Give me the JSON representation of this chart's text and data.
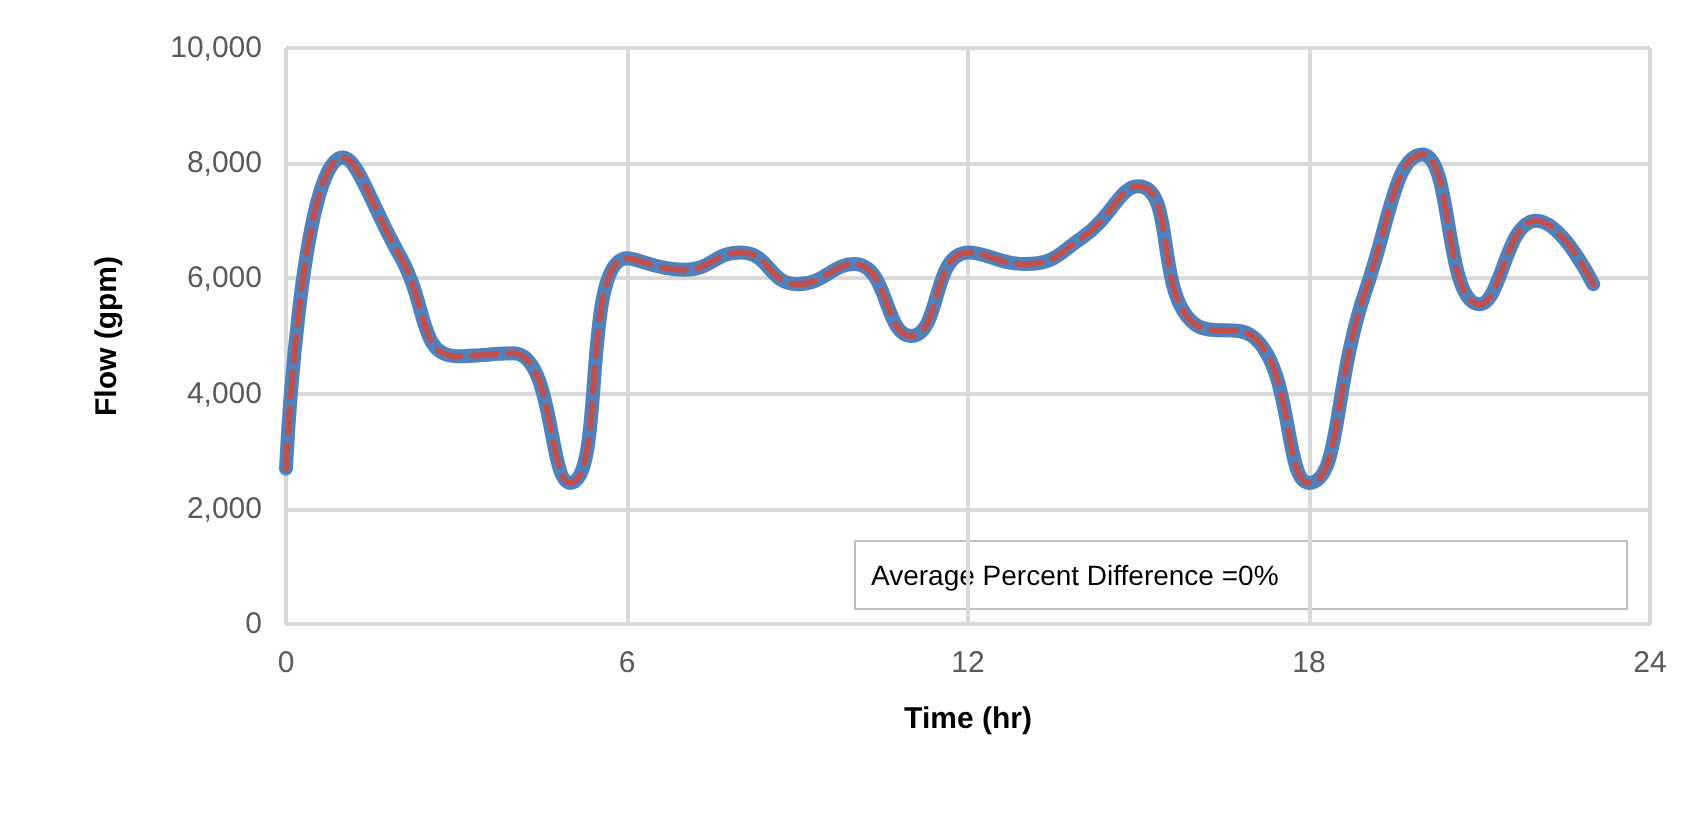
{
  "chart_data": {
    "type": "line",
    "xlabel": "Time (hr)",
    "ylabel": "Flow (gpm)",
    "x": [
      0,
      1,
      2,
      3,
      4,
      5,
      6,
      7,
      8,
      9,
      10,
      11,
      12,
      13,
      14,
      15,
      16,
      17,
      18,
      19,
      20,
      21,
      22,
      23
    ],
    "series": [
      {
        "color": "#4f81bd",
        "line_style": "solid",
        "values": [
          2700,
          8100,
          6400,
          4650,
          4700,
          2450,
          6350,
          6150,
          6450,
          5900,
          6250,
          5000,
          6450,
          6250,
          6700,
          7600,
          5200,
          5000,
          2450,
          5800,
          8150,
          5550,
          7000,
          5900
        ]
      },
      {
        "color": "#c0504d",
        "line_style": "dashed",
        "values": [
          2700,
          8100,
          6400,
          4650,
          4700,
          2450,
          6350,
          6150,
          6450,
          5900,
          6250,
          5000,
          6450,
          6250,
          6700,
          7600,
          5200,
          5000,
          2450,
          5800,
          8150,
          5550,
          7000,
          5900
        ]
      }
    ],
    "xlim": [
      0,
      24
    ],
    "xticks": [
      0,
      6,
      12,
      18,
      24
    ],
    "ylim": [
      0,
      10000
    ],
    "yticks": [
      0,
      {
        "value": 2000,
        "label": "2,000"
      },
      {
        "value": 4000,
        "label": "4,000"
      },
      {
        "value": 6000,
        "label": "6,000"
      },
      {
        "value": 8000,
        "label": "8,000"
      },
      {
        "value": 10000,
        "label": "10,000"
      }
    ],
    "grid": true,
    "marker": "none",
    "annotations": [
      "Average Percent Difference =0%"
    ]
  }
}
